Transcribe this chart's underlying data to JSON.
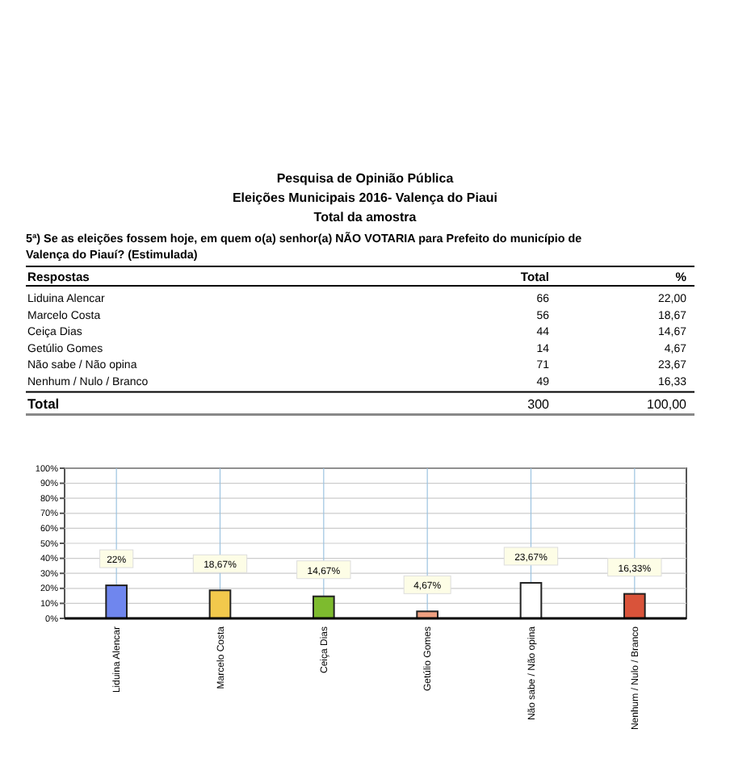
{
  "chart_data": [
    {
      "type": "other",
      "title": "Pesquisa de Opinião Pública",
      "subtitle": "Eleições Municipais 2016-  Valença do Piaui",
      "xlabel": "Respostas",
      "annotations": [
        "Total da amostra",
        "5ª) Se as eleições fossem hoje, em quem o(a) senhor(a) NÃO VOTARIA para Prefeito do município de Valença do Piauí? (Estimulada)",
        "Total"
      ],
      "categories": [
        "Liduina Alencar",
        "Marcelo Costa",
        "Ceiça Dias",
        "Getúlio Gomes",
        "Não sabe / Não opina",
        "Nenhum / Nulo / Branco"
      ],
      "series": [
        {
          "name": "Total",
          "values": [
            66,
            56,
            44,
            14,
            71,
            49
          ]
        },
        {
          "name": "%",
          "values": [
            22.0,
            18.67,
            14.67,
            4.67,
            23.67,
            16.33
          ],
          "value_labels": [
            "22,00",
            "18,67",
            "14,67",
            "4,67",
            "23,67",
            "16,33"
          ]
        }
      ],
      "data_labels": true,
      "totals": [
        "300",
        "100,00"
      ]
    },
    {
      "type": "bar",
      "categories": [
        "Liduina Alencar",
        "Marcelo Costa",
        "Ceiça Dias",
        "Getúlio Gomes",
        "Não sabe / Não opina",
        "Nenhum / Nulo / Branco"
      ],
      "values": [
        22,
        18.67,
        14.67,
        4.67,
        23.67,
        16.33
      ],
      "value_labels": [
        "22%",
        "18,67%",
        "14,67%",
        "4,67%",
        "23,67%",
        "16,33%"
      ],
      "colors": [
        "#6f86ee",
        "#f2c94c",
        "#7dbb2e",
        "#f0a080",
        "#ffffff",
        "#d9533a"
      ],
      "ylim": [
        0,
        100
      ],
      "yticks": [
        {
          "value": 0,
          "label": "0%"
        },
        {
          "value": 10,
          "label": "10%"
        },
        {
          "value": 20,
          "label": "20%"
        },
        {
          "value": 30,
          "label": "30%"
        },
        {
          "value": 40,
          "label": "40%"
        },
        {
          "value": 50,
          "label": "50%"
        },
        {
          "value": 60,
          "label": "60%"
        },
        {
          "value": 70,
          "label": "70%"
        },
        {
          "value": 80,
          "label": "80%"
        },
        {
          "value": 90,
          "label": "90%"
        },
        {
          "value": 100,
          "label": "100%"
        }
      ],
      "grid": true
    }
  ]
}
